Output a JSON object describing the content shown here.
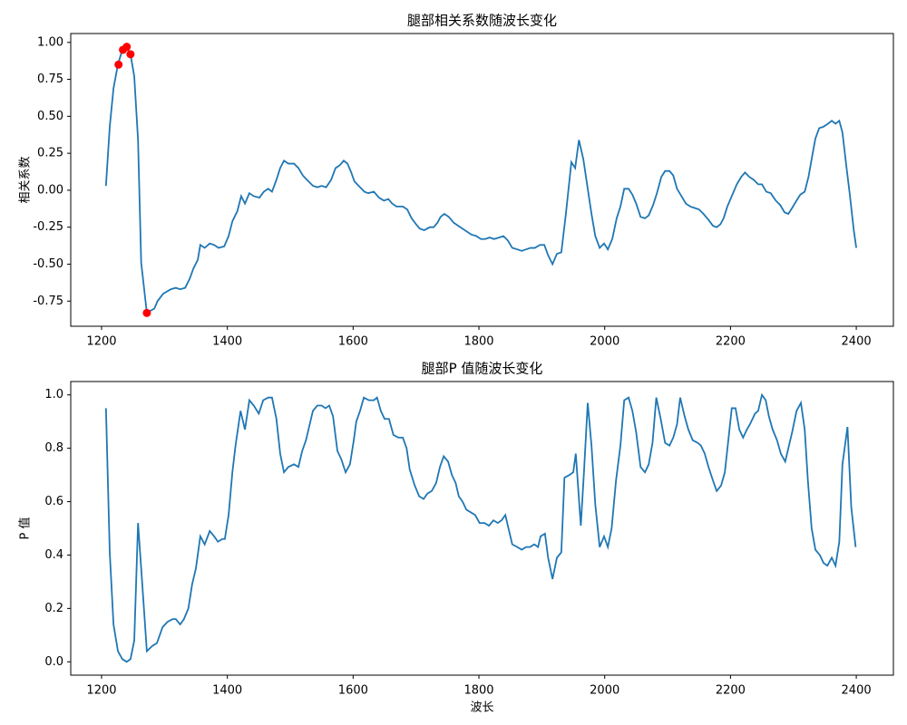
{
  "chart_data": [
    {
      "type": "line",
      "title": "腿部相关系数随波长变化",
      "ylabel": "相关系数",
      "xlim": [
        1151,
        2459
      ],
      "ylim": [
        -0.92,
        1.06
      ],
      "xticks": [
        1200,
        1400,
        1600,
        1800,
        2000,
        2200,
        2400
      ],
      "yticks": [
        {
          "value": -0.75,
          "label": "-0.75"
        },
        {
          "value": -0.5,
          "label": "-0.50"
        },
        {
          "value": -0.25,
          "label": "-0.25"
        },
        {
          "value": 0,
          "label": "0.00"
        },
        {
          "value": 0.25,
          "label": "0.25"
        },
        {
          "value": 0.5,
          "label": "0.50"
        },
        {
          "value": 0.75,
          "label": "0.75"
        },
        {
          "value": 1,
          "label": "1.00"
        }
      ],
      "series": [
        {
          "type": "line",
          "color": "#1f77b4",
          "x": [
            1207,
            1213,
            1219,
            1226,
            1233,
            1239,
            1246,
            1252,
            1258,
            1263,
            1272,
            1284,
            1289,
            1298,
            1310,
            1318,
            1325,
            1333,
            1340,
            1346,
            1353,
            1357,
            1364,
            1372,
            1379,
            1386,
            1395,
            1402,
            1408,
            1416,
            1422,
            1428,
            1435,
            1442,
            1451,
            1458,
            1465,
            1471,
            1478,
            1484,
            1490,
            1497,
            1506,
            1513,
            1520,
            1529,
            1536,
            1543,
            1550,
            1557,
            1565,
            1572,
            1579,
            1585,
            1591,
            1597,
            1602,
            1611,
            1618,
            1624,
            1633,
            1641,
            1649,
            1656,
            1662,
            1669,
            1679,
            1686,
            1693,
            1700,
            1706,
            1713,
            1722,
            1728,
            1734,
            1739,
            1745,
            1752,
            1760,
            1767,
            1774,
            1781,
            1788,
            1796,
            1803,
            1810,
            1817,
            1824,
            1832,
            1839,
            1846,
            1853,
            1861,
            1868,
            1875,
            1882,
            1889,
            1897,
            1904,
            1910,
            1917,
            1924,
            1931,
            1938,
            1947,
            1953,
            1959,
            1966,
            1973,
            1979,
            1985,
            1992,
            1999,
            2005,
            2012,
            2019,
            2025,
            2031,
            2038,
            2044,
            2050,
            2057,
            2064,
            2070,
            2077,
            2083,
            2090,
            2096,
            2103,
            2109,
            2115,
            2122,
            2129,
            2136,
            2143,
            2150,
            2157,
            2165,
            2172,
            2178,
            2184,
            2189,
            2195,
            2202,
            2210,
            2217,
            2223,
            2230,
            2237,
            2244,
            2250,
            2257,
            2264,
            2272,
            2279,
            2286,
            2292,
            2298,
            2305,
            2311,
            2318,
            2324,
            2329,
            2335,
            2341,
            2348,
            2355,
            2361,
            2367,
            2373,
            2378,
            2384,
            2390,
            2396,
            2400
          ],
          "values": [
            0.03,
            0.43,
            0.69,
            0.85,
            0.95,
            0.97,
            0.92,
            0.77,
            0.34,
            -0.49,
            -0.83,
            -0.8,
            -0.75,
            -0.7,
            -0.67,
            -0.66,
            -0.67,
            -0.66,
            -0.6,
            -0.53,
            -0.47,
            -0.37,
            -0.39,
            -0.36,
            -0.37,
            -0.39,
            -0.38,
            -0.31,
            -0.21,
            -0.14,
            -0.04,
            -0.09,
            -0.02,
            -0.04,
            -0.05,
            -0.01,
            0.01,
            -0.01,
            0.07,
            0.15,
            0.2,
            0.18,
            0.18,
            0.15,
            0.1,
            0.06,
            0.03,
            0.02,
            0.03,
            0.02,
            0.07,
            0.15,
            0.17,
            0.2,
            0.18,
            0.12,
            0.06,
            0.02,
            -0.01,
            -0.02,
            -0.01,
            -0.05,
            -0.07,
            -0.06,
            -0.09,
            -0.11,
            -0.11,
            -0.13,
            -0.19,
            -0.23,
            -0.26,
            -0.27,
            -0.25,
            -0.25,
            -0.22,
            -0.18,
            -0.16,
            -0.18,
            -0.22,
            -0.24,
            -0.26,
            -0.28,
            -0.3,
            -0.31,
            -0.33,
            -0.33,
            -0.32,
            -0.33,
            -0.32,
            -0.31,
            -0.34,
            -0.39,
            -0.4,
            -0.41,
            -0.4,
            -0.39,
            -0.39,
            -0.37,
            -0.37,
            -0.44,
            -0.5,
            -0.43,
            -0.42,
            -0.17,
            0.19,
            0.15,
            0.34,
            0.21,
            0.01,
            -0.16,
            -0.31,
            -0.39,
            -0.36,
            -0.4,
            -0.33,
            -0.19,
            -0.11,
            0.01,
            0.01,
            -0.03,
            -0.09,
            -0.18,
            -0.19,
            -0.17,
            -0.1,
            -0.02,
            0.09,
            0.13,
            0.13,
            0.1,
            0.01,
            -0.04,
            -0.09,
            -0.11,
            -0.12,
            -0.13,
            -0.16,
            -0.2,
            -0.24,
            -0.25,
            -0.23,
            -0.19,
            -0.11,
            -0.04,
            0.04,
            0.09,
            0.12,
            0.09,
            0.07,
            0.04,
            0.04,
            -0.01,
            -0.02,
            -0.07,
            -0.1,
            -0.15,
            -0.16,
            -0.12,
            -0.07,
            -0.03,
            -0.01,
            0.09,
            0.21,
            0.35,
            0.42,
            0.43,
            0.45,
            0.47,
            0.45,
            0.47,
            0.39,
            0.17,
            -0.04,
            -0.27,
            -0.39
          ]
        },
        {
          "type": "scatter",
          "color": "#ff0000",
          "x": [
            1227,
            1234,
            1240,
            1246,
            1272
          ],
          "values": [
            0.85,
            0.95,
            0.97,
            0.92,
            -0.83
          ]
        }
      ]
    },
    {
      "type": "line",
      "title": "腿部P 值随波长变化",
      "xlabel": "波长",
      "ylabel": "P 值",
      "xlim": [
        1151,
        2459
      ],
      "ylim": [
        -0.05,
        1.05
      ],
      "xticks": [
        1200,
        1400,
        1600,
        1800,
        2000,
        2200,
        2400
      ],
      "yticks": [
        {
          "value": 0,
          "label": "0.0"
        },
        0.2,
        0.4,
        0.6,
        0.8,
        {
          "value": 1,
          "label": "1.0"
        }
      ],
      "series": [
        {
          "type": "line",
          "color": "#1f77b4",
          "x": [
            1207,
            1213,
            1219,
            1226,
            1233,
            1240,
            1246,
            1252,
            1258,
            1263,
            1272,
            1281,
            1288,
            1297,
            1305,
            1313,
            1318,
            1325,
            1331,
            1338,
            1344,
            1350,
            1357,
            1364,
            1372,
            1379,
            1385,
            1392,
            1396,
            1402,
            1408,
            1413,
            1421,
            1428,
            1435,
            1442,
            1450,
            1457,
            1465,
            1471,
            1478,
            1484,
            1490,
            1497,
            1506,
            1513,
            1519,
            1525,
            1530,
            1536,
            1543,
            1550,
            1556,
            1562,
            1568,
            1575,
            1581,
            1588,
            1595,
            1601,
            1605,
            1611,
            1617,
            1625,
            1633,
            1638,
            1644,
            1650,
            1657,
            1664,
            1672,
            1679,
            1685,
            1690,
            1698,
            1705,
            1712,
            1718,
            1725,
            1732,
            1738,
            1744,
            1751,
            1757,
            1763,
            1768,
            1774,
            1780,
            1787,
            1794,
            1801,
            1809,
            1816,
            1823,
            1830,
            1836,
            1842,
            1848,
            1853,
            1861,
            1868,
            1875,
            1881,
            1888,
            1894,
            1898,
            1905,
            1910,
            1917,
            1924,
            1931,
            1936,
            1944,
            1950,
            1954,
            1962,
            1967,
            1973,
            1979,
            1985,
            1992,
            1999,
            2005,
            2011,
            2018,
            2025,
            2031,
            2038,
            2044,
            2050,
            2057,
            2064,
            2070,
            2076,
            2082,
            2089,
            2096,
            2103,
            2109,
            2115,
            2120,
            2127,
            2133,
            2140,
            2148,
            2153,
            2159,
            2165,
            2172,
            2178,
            2185,
            2191,
            2197,
            2202,
            2208,
            2214,
            2220,
            2226,
            2231,
            2239,
            2244,
            2250,
            2256,
            2261,
            2267,
            2274,
            2280,
            2287,
            2293,
            2298,
            2305,
            2312,
            2318,
            2323,
            2329,
            2335,
            2342,
            2348,
            2354,
            2361,
            2367,
            2373,
            2378,
            2386,
            2392,
            2399
          ],
          "values": [
            0.95,
            0.41,
            0.14,
            0.04,
            0.01,
            0,
            0.01,
            0.08,
            0.52,
            0.35,
            0.04,
            0.06,
            0.07,
            0.13,
            0.15,
            0.16,
            0.16,
            0.14,
            0.16,
            0.2,
            0.29,
            0.35,
            0.47,
            0.44,
            0.49,
            0.47,
            0.45,
            0.46,
            0.46,
            0.55,
            0.71,
            0.81,
            0.94,
            0.87,
            0.98,
            0.96,
            0.93,
            0.98,
            0.99,
            0.99,
            0.91,
            0.78,
            0.71,
            0.73,
            0.74,
            0.73,
            0.79,
            0.83,
            0.88,
            0.94,
            0.96,
            0.96,
            0.95,
            0.96,
            0.92,
            0.79,
            0.76,
            0.71,
            0.74,
            0.83,
            0.9,
            0.94,
            0.99,
            0.98,
            0.98,
            0.99,
            0.94,
            0.91,
            0.91,
            0.85,
            0.84,
            0.84,
            0.8,
            0.72,
            0.66,
            0.62,
            0.61,
            0.63,
            0.64,
            0.67,
            0.73,
            0.77,
            0.75,
            0.7,
            0.67,
            0.62,
            0.6,
            0.57,
            0.56,
            0.55,
            0.52,
            0.52,
            0.51,
            0.53,
            0.52,
            0.53,
            0.55,
            0.49,
            0.44,
            0.43,
            0.42,
            0.43,
            0.43,
            0.44,
            0.43,
            0.47,
            0.48,
            0.39,
            0.31,
            0.39,
            0.41,
            0.69,
            0.7,
            0.71,
            0.78,
            0.51,
            0.71,
            0.97,
            0.81,
            0.59,
            0.43,
            0.47,
            0.43,
            0.5,
            0.68,
            0.81,
            0.98,
            0.99,
            0.94,
            0.86,
            0.73,
            0.71,
            0.74,
            0.82,
            0.99,
            0.91,
            0.82,
            0.81,
            0.84,
            0.89,
            0.99,
            0.92,
            0.87,
            0.83,
            0.82,
            0.81,
            0.78,
            0.73,
            0.68,
            0.64,
            0.66,
            0.71,
            0.84,
            0.95,
            0.95,
            0.87,
            0.84,
            0.87,
            0.89,
            0.93,
            0.94,
            1,
            0.98,
            0.92,
            0.87,
            0.83,
            0.78,
            0.75,
            0.81,
            0.86,
            0.94,
            0.97,
            0.87,
            0.68,
            0.5,
            0.42,
            0.4,
            0.37,
            0.36,
            0.39,
            0.36,
            0.45,
            0.74,
            0.88,
            0.58,
            0.43
          ]
        }
      ]
    }
  ]
}
